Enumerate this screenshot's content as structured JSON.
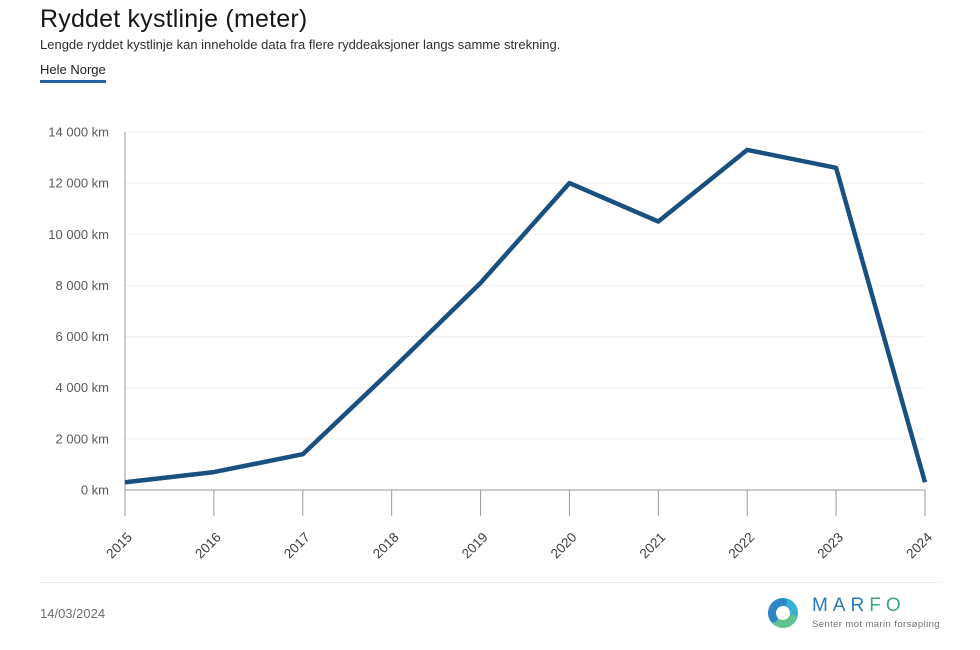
{
  "header": {
    "title": "Ryddet kystlinje (meter)",
    "subtitle": "Lengde ryddet kystlinje kan inneholde data fra flere ryddeaksjoner langs samme strekning.",
    "tab": "Hele Norge"
  },
  "chart_data": {
    "type": "line",
    "title": "Ryddet kystlinje (meter)",
    "series_name": "Hele Norge",
    "categories": [
      "2015",
      "2016",
      "2017",
      "2018",
      "2019",
      "2020",
      "2021",
      "2022",
      "2023",
      "2024"
    ],
    "values": [
      300,
      700,
      1400,
      4700,
      8100,
      12000,
      10500,
      13300,
      12600,
      300
    ],
    "xlabel": "",
    "ylabel": "km",
    "ylim": [
      0,
      14000
    ],
    "ytick_step": 2000,
    "ytick_labels": [
      "0 km",
      "2 000 km",
      "4 000 km",
      "6 000 km",
      "8 000 km",
      "10 000 km",
      "12 000 km",
      "14 000 km"
    ],
    "grid": true,
    "legend": "none",
    "line_color": "#1a507f"
  },
  "footer": {
    "date": "14/03/2024",
    "logo": {
      "name_blue": "MAR",
      "name_green": "FO",
      "tagline": "Senter mot marin forsøpling"
    }
  },
  "colors": {
    "accent_blue": "#2660a4",
    "axis": "#9a9a9a",
    "grid": "#ededed",
    "y_label": "#595959",
    "x_label": "#3c3c3c",
    "logo_blue": "#2e86c5",
    "logo_teal": "#35b1d4",
    "logo_green": "#5fc48e"
  }
}
